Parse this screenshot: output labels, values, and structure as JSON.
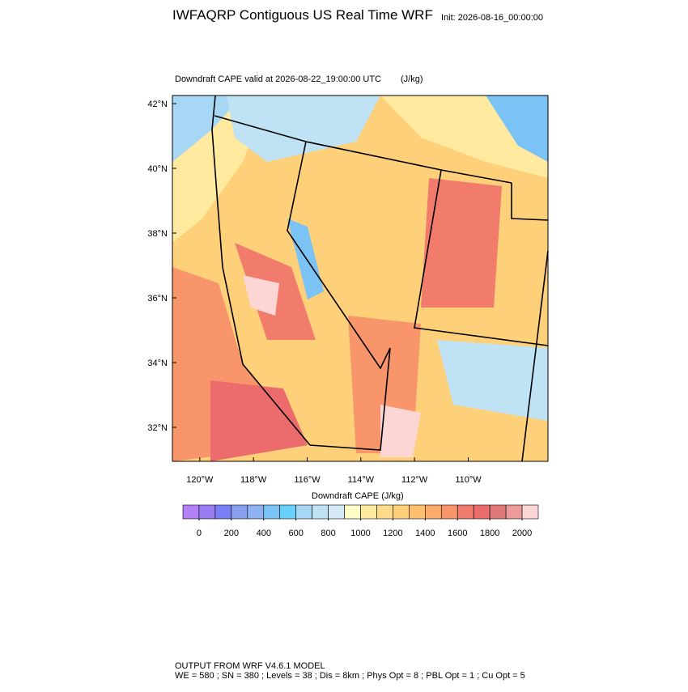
{
  "header": {
    "title": "IWFAQRP Contiguous US Real Time WRF",
    "init": "Init: 2026-08-16_00:00:00"
  },
  "map": {
    "subtitle": "Downdraft CAPE valid at 2026-08-22_19:00:00 UTC",
    "units": "(J/kg)",
    "xlim": [
      -121.02,
      -107.03
    ],
    "ylim": [
      30.95,
      42.25
    ],
    "yticks": [
      {
        "value": 42,
        "label": "42°N"
      },
      {
        "value": 40,
        "label": "40°N"
      },
      {
        "value": 38,
        "label": "38°N"
      },
      {
        "value": 36,
        "label": "36°N"
      },
      {
        "value": 34,
        "label": "34°N"
      },
      {
        "value": 32,
        "label": "32°N"
      }
    ],
    "xticks": [
      {
        "value": -120,
        "label": "120°W"
      },
      {
        "value": -118,
        "label": "118°W"
      },
      {
        "value": -116,
        "label": "116°W"
      },
      {
        "value": -114,
        "label": "114°W"
      },
      {
        "value": -112,
        "label": "112°W"
      },
      {
        "value": -110,
        "label": "110°W"
      }
    ]
  },
  "colorbar": {
    "title": "Downdraft CAPE  (J/kg)",
    "lim": [
      -100,
      2100
    ],
    "ticks": [
      0,
      200,
      400,
      600,
      800,
      1000,
      1200,
      1400,
      1600,
      1800,
      2000
    ],
    "colors": [
      "#b380f5",
      "#9a7cf5",
      "#7b7ef5",
      "#8aa0ef",
      "#8fb2f2",
      "#7bc3f5",
      "#6ad2fa",
      "#a6d8f5",
      "#bfe2f5",
      "#d6eaf5",
      "#fffcc8",
      "#ffeaa0",
      "#fedc8a",
      "#fdd079",
      "#fec06e",
      "#fcab6a",
      "#f8956a",
      "#f27c6c",
      "#ec6c6e",
      "#e07879",
      "#ec9a9a",
      "#fcd5d5"
    ]
  },
  "footer": [
    "OUTPUT FROM WRF V4.6.1 MODEL",
    "WE = 580 ; SN = 380 ; Levels = 38 ; Dis = 8km ; Phys Opt = 8 ; PBL Opt = 1 ; Cu Opt = 5"
  ]
}
